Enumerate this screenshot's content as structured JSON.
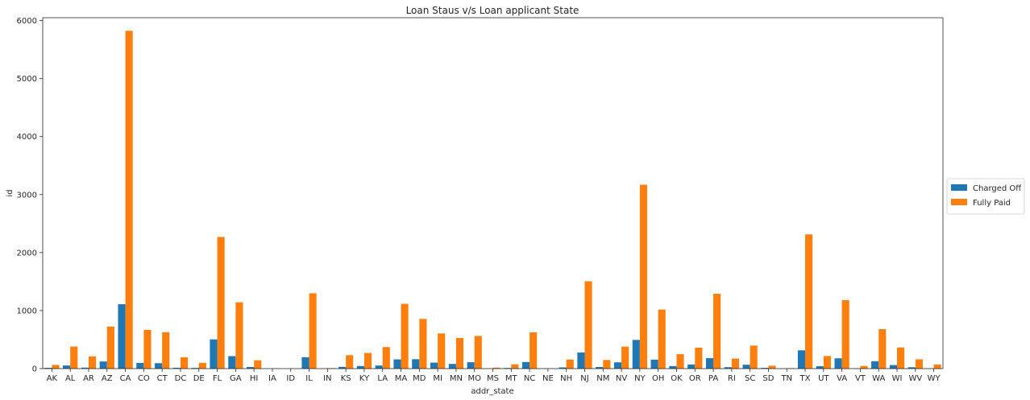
{
  "chart_data": {
    "type": "bar",
    "title": "Loan Staus v/s Loan applicant State",
    "xlabel": "addr_state",
    "ylabel": "id",
    "ylim": [
      0,
      6050
    ],
    "yticks": [
      0,
      1000,
      2000,
      3000,
      4000,
      5000,
      6000
    ],
    "grid": false,
    "legend_position": "right",
    "categories": [
      "AK",
      "AL",
      "AR",
      "AZ",
      "CA",
      "CO",
      "CT",
      "DC",
      "DE",
      "FL",
      "GA",
      "HI",
      "IA",
      "ID",
      "IL",
      "IN",
      "KS",
      "KY",
      "LA",
      "MA",
      "MD",
      "MI",
      "MN",
      "MO",
      "MS",
      "MT",
      "NC",
      "NE",
      "NH",
      "NJ",
      "NM",
      "NV",
      "NY",
      "OH",
      "OK",
      "OR",
      "PA",
      "RI",
      "SC",
      "SD",
      "TN",
      "TX",
      "UT",
      "VA",
      "VT",
      "WA",
      "WI",
      "WV",
      "WY"
    ],
    "series": [
      {
        "name": "Charged Off",
        "color": "#1f77b4",
        "values": [
          14,
          54,
          17,
          123,
          1110,
          98,
          94,
          15,
          12,
          504,
          215,
          28,
          0,
          0,
          197,
          0,
          30,
          45,
          53,
          159,
          162,
          103,
          81,
          110,
          2,
          11,
          114,
          3,
          21,
          278,
          28,
          108,
          495,
          155,
          44,
          71,
          180,
          25,
          67,
          13,
          2,
          315,
          41,
          177,
          5,
          127,
          62,
          24,
          4
        ]
      },
      {
        "name": "Fully Paid",
        "color": "#ff7f0e",
        "values": [
          64,
          381,
          210,
          726,
          5824,
          668,
          627,
          196,
          100,
          2270,
          1144,
          144,
          5,
          0,
          1299,
          9,
          231,
          270,
          372,
          1117,
          857,
          607,
          528,
          563,
          17,
          74,
          625,
          3,
          156,
          1506,
          149,
          379,
          3170,
          1018,
          249,
          361,
          1291,
          172,
          397,
          50,
          8,
          2314,
          217,
          1181,
          45,
          680,
          365,
          160,
          71
        ]
      }
    ]
  }
}
